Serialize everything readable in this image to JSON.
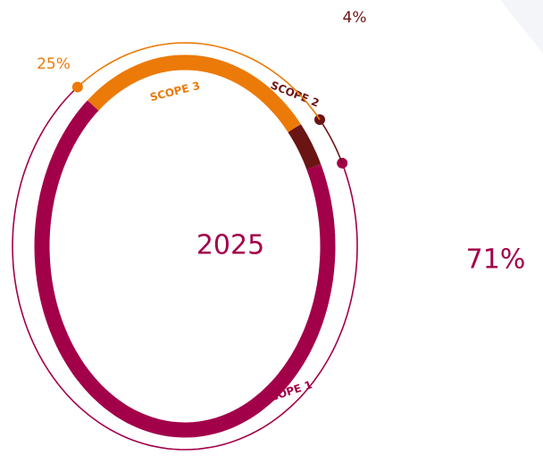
{
  "chart_data": {
    "type": "donut",
    "center_label": "2025",
    "categories": [
      "SCOPE 1",
      "SCOPE 2",
      "SCOPE 3"
    ],
    "values": [
      71,
      4,
      25
    ],
    "value_labels": [
      "71%",
      "4%",
      "25%"
    ],
    "colors": [
      "#a3004a",
      "#6b1414",
      "#ec7a08"
    ]
  }
}
